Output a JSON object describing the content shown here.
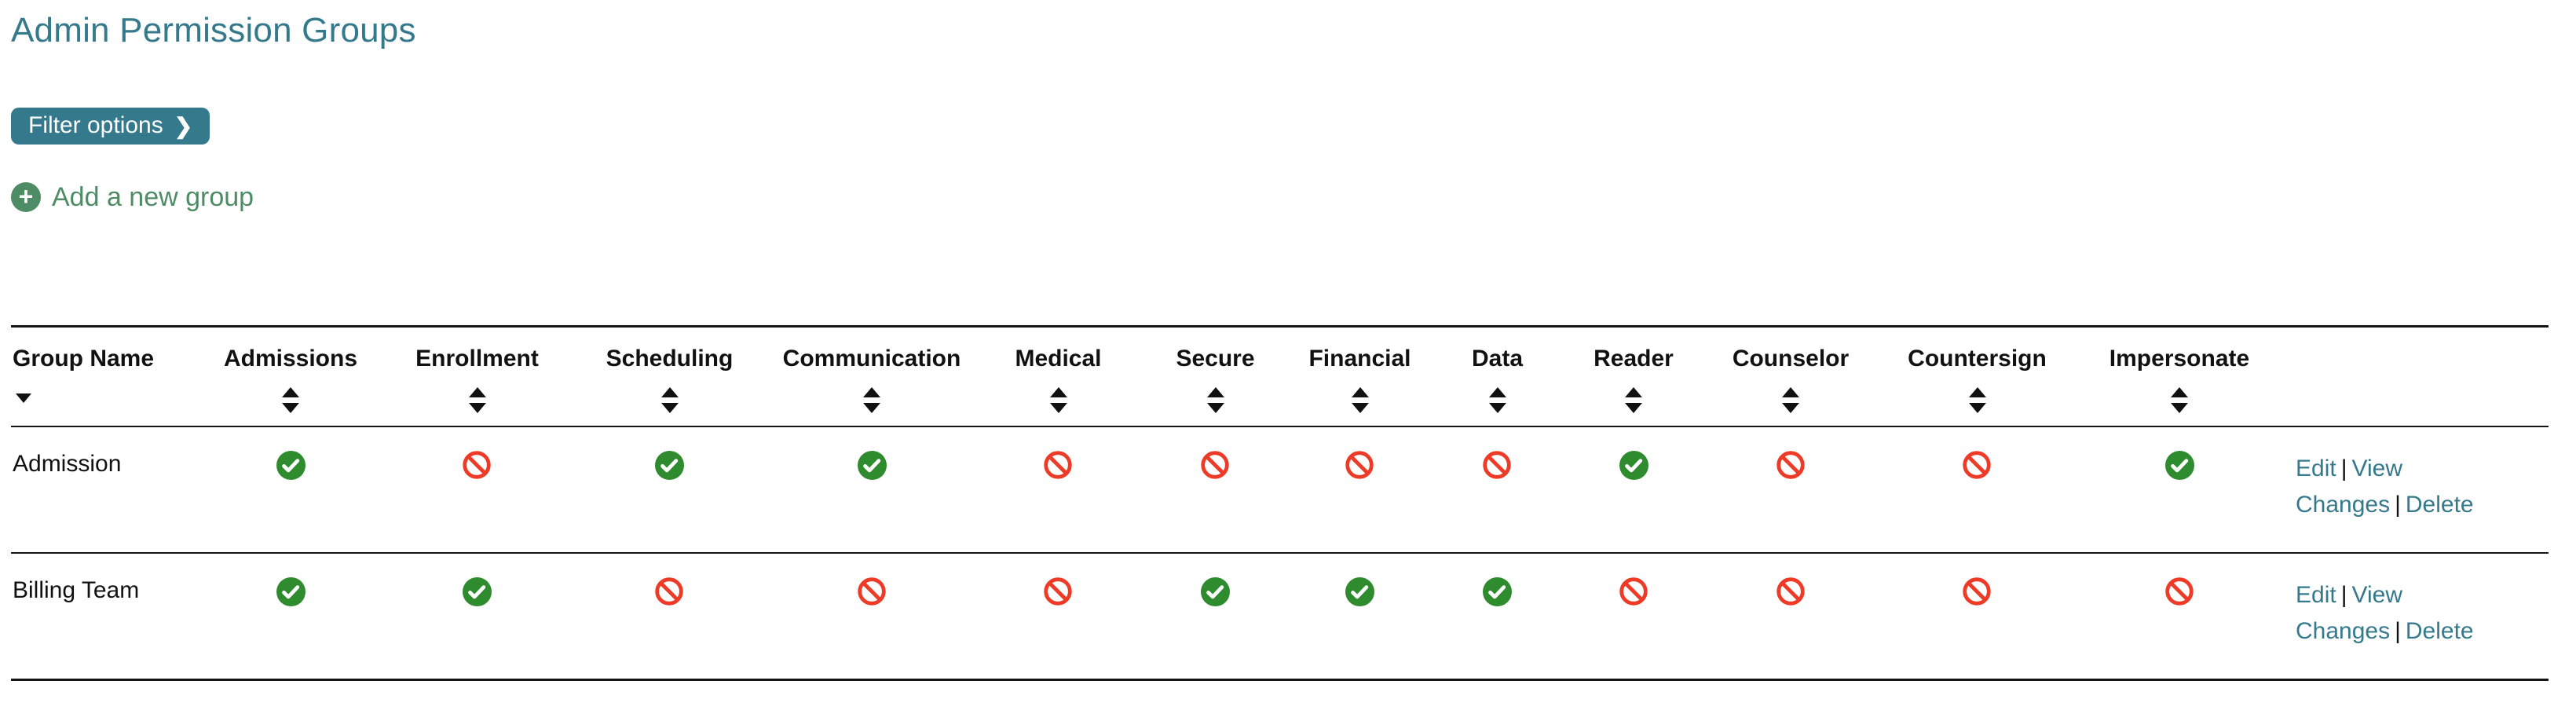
{
  "header": {
    "title": "Admin Permission Groups"
  },
  "toolbar": {
    "filter_button_label": "Filter options",
    "add_group_label": "Add a new group"
  },
  "icons": {
    "chevron_glyph": "❯",
    "plus_glyph": "+",
    "allowed": "check-circle-icon",
    "denied": "ban-icon"
  },
  "colors": {
    "accent_teal": "#35798C",
    "allowed_green": "#2E8B2E",
    "denied_red": "#EE3B27",
    "add_green": "#4E8C65",
    "text": "#111111",
    "line": "#141414"
  },
  "table": {
    "actions_separator": "|",
    "columns": [
      {
        "label": "Group Name",
        "sort_indicator": "desc"
      },
      {
        "label": "Admissions",
        "sort_indicator": "both"
      },
      {
        "label": "Enrollment",
        "sort_indicator": "both"
      },
      {
        "label": "Scheduling",
        "sort_indicator": "both"
      },
      {
        "label": "Communication",
        "sort_indicator": "both"
      },
      {
        "label": "Medical",
        "sort_indicator": "both"
      },
      {
        "label": "Secure",
        "sort_indicator": "both"
      },
      {
        "label": "Financial",
        "sort_indicator": "both"
      },
      {
        "label": "Data",
        "sort_indicator": "both"
      },
      {
        "label": "Reader",
        "sort_indicator": "both"
      },
      {
        "label": "Counselor",
        "sort_indicator": "both"
      },
      {
        "label": "Countersign",
        "sort_indicator": "both"
      },
      {
        "label": "Impersonate",
        "sort_indicator": "both"
      },
      {
        "label": "",
        "sort_indicator": "none"
      }
    ],
    "rows": [
      {
        "name": "Admission",
        "permissions": [
          "allowed",
          "denied",
          "allowed",
          "allowed",
          "denied",
          "denied",
          "denied",
          "denied",
          "allowed",
          "denied",
          "denied",
          "allowed"
        ],
        "actions": [
          "Edit",
          "View Changes",
          "Delete"
        ]
      },
      {
        "name": "Billing Team",
        "permissions": [
          "allowed",
          "allowed",
          "denied",
          "denied",
          "denied",
          "allowed",
          "allowed",
          "allowed",
          "denied",
          "denied",
          "denied",
          "denied"
        ],
        "actions": [
          "Edit",
          "View Changes",
          "Delete"
        ]
      }
    ]
  }
}
